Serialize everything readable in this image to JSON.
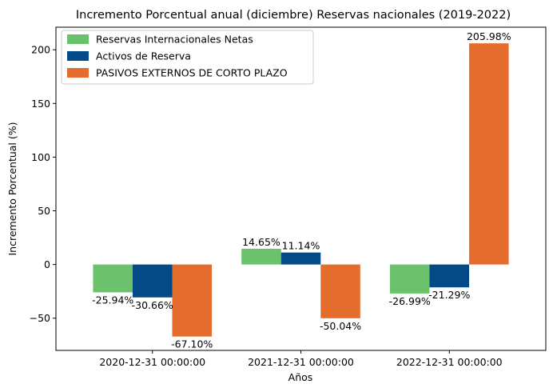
{
  "chart_data": {
    "type": "bar",
    "title": "Incremento Porcentual anual (diciembre) Reservas nacionales (2019-2022)",
    "xlabel": "Años",
    "ylabel": "Incremento Porcentual (%)",
    "categories": [
      "2020-12-31 00:00:00",
      "2021-12-31 00:00:00",
      "2022-12-31 00:00:00"
    ],
    "ylim": [
      -80,
      221
    ],
    "yticks": [
      -50,
      0,
      50,
      100,
      150,
      200
    ],
    "ytick_labels": [
      "−50",
      "0",
      "50",
      "100",
      "150",
      "200"
    ],
    "grid": false,
    "legend_position": "top-left",
    "series": [
      {
        "name": "Reservas Internacionales Netas",
        "color": "#6cc16c",
        "values": [
          -25.94,
          14.65,
          -26.99
        ],
        "labels": [
          "-25.94%",
          "14.65%",
          "-26.99%"
        ]
      },
      {
        "name": "Activos de Reserva",
        "color": "#044a87",
        "values": [
          -30.66,
          11.14,
          -21.29
        ],
        "labels": [
          "-30.66%",
          "11.14%",
          "-21.29%"
        ]
      },
      {
        "name": "PASIVOS EXTERNOS DE CORTO PLAZO",
        "color": "#e46c2c",
        "values": [
          -67.1,
          -50.04,
          205.98
        ],
        "labels": [
          "-67.10%",
          "-50.04%",
          "205.98%"
        ]
      }
    ]
  }
}
